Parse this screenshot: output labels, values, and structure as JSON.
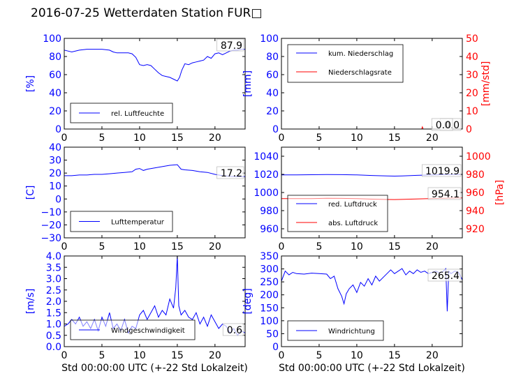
{
  "figure": {
    "title": "2016-07-25 Wetterdaten Station FUR\u0000"
  },
  "chart_data": [
    {
      "type": "line",
      "panel": "Luftfeuchte",
      "xlabel": "",
      "ylabel": "[%]",
      "xlim": [
        0,
        24
      ],
      "xticks": [
        "0",
        "5",
        "10",
        "15",
        "20"
      ],
      "ylim": [
        0,
        100
      ],
      "yticks": [
        "0",
        "20",
        "40",
        "60",
        "80",
        "100"
      ],
      "legend": "lower-left",
      "current_value": "87.9",
      "series": [
        {
          "name": "rel. Luftfeuchte",
          "axis": "left",
          "color": "#0000ff",
          "x": [
            0,
            0.5,
            1,
            2,
            3,
            4,
            5,
            6,
            6.5,
            7,
            8,
            8.5,
            9,
            9.5,
            10,
            10.5,
            11,
            11.5,
            12,
            12.5,
            13,
            13.5,
            14,
            14.5,
            15,
            15.3,
            15.6,
            16,
            16.5,
            17,
            17.5,
            18,
            18.5,
            19,
            19.5,
            20,
            20.5,
            21,
            21.5,
            22,
            22.5,
            23,
            23.5,
            24
          ],
          "y": [
            87,
            86,
            85,
            87,
            88,
            88,
            88,
            87,
            85,
            84,
            84,
            84,
            83,
            79,
            71,
            70,
            71,
            70,
            66,
            62,
            59,
            58,
            57,
            55,
            53,
            57,
            65,
            72,
            71,
            73,
            74,
            75,
            76,
            80,
            78,
            83,
            84,
            82,
            84,
            86,
            87,
            87,
            88,
            88
          ]
        }
      ]
    },
    {
      "type": "line",
      "panel": "Niederschlag",
      "xlabel": "",
      "ylabel": "[mm]",
      "ylabel_right": "[mm/std]",
      "xlim": [
        0,
        24
      ],
      "xticks": [
        "0",
        "5",
        "10",
        "15",
        "20"
      ],
      "ylim": [
        0,
        100
      ],
      "yticks": [
        "0",
        "20",
        "40",
        "60",
        "80",
        "100"
      ],
      "ylim_right": [
        0,
        50
      ],
      "yticks_right": [
        "0",
        "10",
        "20",
        "30",
        "40",
        "50"
      ],
      "legend": "upper-left",
      "current_value": "0.0",
      "current_value_right": "0.0",
      "series": [
        {
          "name": "kum. Niederschlag",
          "axis": "left",
          "color": "#0000ff",
          "x": [
            0,
            24
          ],
          "y": [
            0,
            0
          ]
        },
        {
          "name": "Niederschlagsrate",
          "axis": "right",
          "color": "#ff0000",
          "x": [
            0,
            18.6,
            18.7,
            18.8,
            24
          ],
          "y": [
            0,
            0,
            1.2,
            0,
            0
          ]
        }
      ]
    },
    {
      "type": "line",
      "panel": "Lufttemperatur",
      "xlabel": "",
      "ylabel": "[C]",
      "xlim": [
        0,
        24
      ],
      "xticks": [
        "0",
        "5",
        "10",
        "15",
        "20"
      ],
      "ylim": [
        -30,
        40
      ],
      "yticks": [
        "−30",
        "−20",
        "−10",
        "0",
        "10",
        "20",
        "30",
        "40"
      ],
      "legend": "lower-left",
      "current_value": "17.2",
      "series": [
        {
          "name": "Lufttemperatur",
          "axis": "left",
          "color": "#0000ff",
          "x": [
            0,
            1,
            2,
            3,
            4,
            5,
            6,
            7,
            8,
            9,
            9.5,
            10,
            10.5,
            11,
            12,
            13,
            14,
            15,
            15.5,
            16,
            17,
            18,
            19,
            20,
            21,
            22,
            23,
            24
          ],
          "y": [
            18,
            18,
            18.5,
            18.5,
            19,
            19,
            19.5,
            20,
            20.5,
            21,
            23,
            23.5,
            22,
            23,
            24,
            25,
            26,
            26.5,
            23,
            22.5,
            22,
            21,
            20.5,
            19,
            18,
            17.5,
            17.2,
            17.2
          ]
        }
      ]
    },
    {
      "type": "line",
      "panel": "Luftdruck",
      "xlabel": "",
      "ylabel": "",
      "ylabel_right": "[hPa]",
      "xlim": [
        0,
        24
      ],
      "xticks": [
        "0",
        "5",
        "10",
        "15",
        "20"
      ],
      "ylim": [
        950,
        1050
      ],
      "yticks": [
        "960",
        "980",
        "1000",
        "1020",
        "1040"
      ],
      "ylim_right": [
        910,
        1010
      ],
      "yticks_right": [
        "920",
        "940",
        "960",
        "980",
        "1000"
      ],
      "legend": "lower-left",
      "current_value": "1019.9",
      "current_value_right": "954.1",
      "series": [
        {
          "name": "red. Luftdruck",
          "axis": "left",
          "color": "#0000ff",
          "x": [
            0,
            2,
            4,
            6,
            8,
            10,
            12,
            14,
            15,
            16,
            18,
            20,
            22,
            24
          ],
          "y": [
            1019.5,
            1019.5,
            1019.6,
            1019.8,
            1019.7,
            1019.4,
            1018.8,
            1018.2,
            1018.1,
            1018.3,
            1018.9,
            1019.4,
            1019.8,
            1019.9
          ]
        },
        {
          "name": "abs. Luftdruck",
          "axis": "right",
          "color": "#ff0000",
          "x": [
            0,
            2,
            4,
            6,
            8,
            10,
            12,
            14,
            15,
            16,
            18,
            20,
            22,
            24
          ],
          "y": [
            953.2,
            953.2,
            953.3,
            953.6,
            953.5,
            953.2,
            952.7,
            952.3,
            952.2,
            952.4,
            952.9,
            953.4,
            953.8,
            954.1
          ]
        }
      ]
    },
    {
      "type": "line",
      "panel": "Windgeschwindigkeit",
      "xlabel": "Std 00:00:00 UTC (+-22 Std Lokalzeit)",
      "ylabel": "[m/s]",
      "xlim": [
        0,
        24
      ],
      "xticks": [
        "0",
        "5",
        "10",
        "15",
        "20"
      ],
      "ylim": [
        0,
        4
      ],
      "yticks": [
        "0.0",
        "0.5",
        "1.0",
        "1.5",
        "2.0",
        "2.5",
        "3.0",
        "3.5",
        "4.0"
      ],
      "legend": "lower-center",
      "current_value": "0.6",
      "series": [
        {
          "name": "Windgeschwindigkeit",
          "axis": "left",
          "color": "#0000ff",
          "x": [
            0,
            0.5,
            1,
            1.5,
            2,
            2.5,
            3,
            3.5,
            4,
            4.5,
            5,
            5.5,
            6,
            6.5,
            7,
            7.5,
            8,
            8.5,
            9,
            9.5,
            10,
            10.5,
            11,
            11.5,
            12,
            12.5,
            13,
            13.5,
            14,
            14.5,
            14.8,
            15,
            15.2,
            15.5,
            16,
            16.5,
            17,
            17.5,
            18,
            18.5,
            19,
            19.5,
            20,
            20.5,
            21,
            21.5,
            22,
            22.5,
            23,
            23.5,
            24
          ],
          "y": [
            0.9,
            1.0,
            1.2,
            1.0,
            1.3,
            0.9,
            1.1,
            0.8,
            1.2,
            0.7,
            1.3,
            0.9,
            1.5,
            0.8,
            1.0,
            0.7,
            1.2,
            0.6,
            0.9,
            0.8,
            1.4,
            1.6,
            1.2,
            1.5,
            1.8,
            1.3,
            1.6,
            1.4,
            2.1,
            1.7,
            2.6,
            4.0,
            1.8,
            1.4,
            1.6,
            1.3,
            1.2,
            1.5,
            1.0,
            1.3,
            0.9,
            1.4,
            1.1,
            0.8,
            1.0,
            0.9,
            0.6,
            0.8,
            0.5,
            0.7,
            0.6
          ]
        }
      ]
    },
    {
      "type": "line",
      "panel": "Windrichtung",
      "xlabel": "Std 00:00:00 UTC (+-22 Std Lokalzeit)",
      "ylabel": "[deg]",
      "xlim": [
        0,
        24
      ],
      "xticks": [
        "0",
        "5",
        "10",
        "15",
        "20"
      ],
      "ylim": [
        0,
        360
      ],
      "yticks": [
        "0",
        "50",
        "100",
        "150",
        "200",
        "250",
        "300",
        "350"
      ],
      "legend": "lower-left",
      "current_value": "265.4",
      "series": [
        {
          "name": "Windrichtung",
          "axis": "left",
          "color": "#0000ff",
          "x": [
            0,
            0.5,
            1,
            1.5,
            2,
            3,
            4,
            5,
            6,
            6.5,
            7,
            7.5,
            8,
            8.3,
            8.6,
            9,
            9.5,
            10,
            10.5,
            11,
            11.5,
            12,
            12.5,
            13,
            13.5,
            14,
            14.5,
            15,
            15.5,
            16,
            16.5,
            17,
            17.5,
            18,
            18.5,
            19,
            19.5,
            20,
            20.5,
            21,
            21.5,
            21.8,
            22,
            22.2,
            22.5,
            23,
            23.5,
            24
          ],
          "y": [
            260,
            300,
            285,
            295,
            290,
            288,
            292,
            290,
            288,
            270,
            280,
            230,
            200,
            170,
            210,
            230,
            245,
            215,
            255,
            240,
            270,
            245,
            280,
            260,
            275,
            290,
            305,
            290,
            300,
            310,
            285,
            300,
            290,
            305,
            295,
            300,
            290,
            295,
            300,
            292,
            300,
            310,
            140,
            300,
            290,
            300,
            295,
            265
          ]
        }
      ]
    }
  ]
}
